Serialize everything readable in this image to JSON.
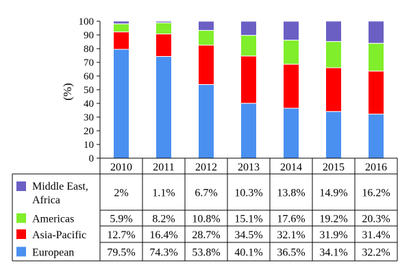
{
  "chart_data": {
    "type": "bar",
    "stacked": true,
    "ylabel": "(%)",
    "ylim": [
      0,
      100
    ],
    "yticks": [
      "0",
      "10",
      "20",
      "30",
      "40",
      "50",
      "60",
      "70",
      "80",
      "90",
      "100"
    ],
    "categories": [
      "2010",
      "2011",
      "2012",
      "2013",
      "2014",
      "2015",
      "2016"
    ],
    "series": [
      {
        "name": "European",
        "color": "#4a90f0",
        "values": [
          79.5,
          74.3,
          53.8,
          40.1,
          36.5,
          34.1,
          32.2
        ],
        "labels": [
          "79.5%",
          "74.3%",
          "53.8%",
          "40.1%",
          "36.5%",
          "34.1%",
          "32.2%"
        ]
      },
      {
        "name": "Asia-Pacific",
        "color": "#ff0000",
        "values": [
          12.7,
          16.4,
          28.7,
          34.5,
          32.1,
          31.9,
          31.4
        ],
        "labels": [
          "12.7%",
          "16.4%",
          "28.7%",
          "34.5%",
          "32.1%",
          "31.9%",
          "31.4%"
        ]
      },
      {
        "name": "Americas",
        "color": "#80ee2a",
        "values": [
          5.9,
          8.2,
          10.8,
          15.1,
          17.6,
          19.2,
          20.3
        ],
        "labels": [
          "5.9%",
          "8.2%",
          "10.8%",
          "15.1%",
          "17.6%",
          "19.2%",
          "20.3%"
        ]
      },
      {
        "name": "Middle East, Africa",
        "color": "#6b5fc4",
        "values": [
          2,
          1.1,
          6.7,
          10.3,
          13.8,
          14.9,
          16.2
        ],
        "labels": [
          "2%",
          "1.1%",
          "6.7%",
          "10.3%",
          "13.8%",
          "14.9%",
          "16.2%"
        ]
      }
    ],
    "table_row_order": [
      "Middle East, Africa",
      "Americas",
      "Asia-Pacific",
      "European"
    ]
  }
}
